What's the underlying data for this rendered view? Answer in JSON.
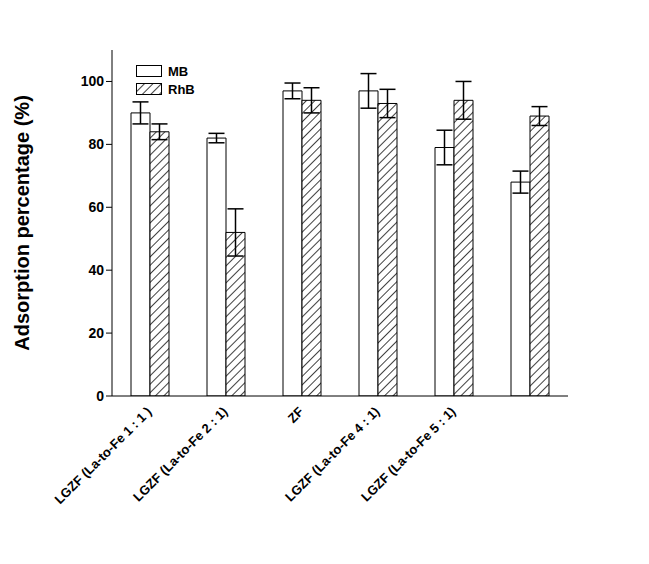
{
  "chart_data": {
    "type": "bar",
    "y_label": "Adsorption percentage (%)",
    "categories": [
      "LGZF (La-to-Fe 1 : 1 )",
      "LGZF (La-to-Fe 2 : 1)",
      "ZF",
      "LGZF (La-to-Fe 4 : 1)",
      "LGZF (La-to-Fe 5 : 1)",
      null
    ],
    "series": [
      {
        "name": "MB",
        "color": "#ffffff",
        "values": [
          90,
          82,
          97,
          97,
          79,
          68
        ],
        "errors": [
          3.5,
          1.5,
          2.5,
          5.5,
          5.5,
          3.5
        ]
      },
      {
        "name": "RhB",
        "color": "#000000",
        "values": [
          84,
          52,
          94,
          93,
          94,
          89
        ],
        "errors": [
          2.5,
          7.5,
          4,
          4.5,
          6,
          3
        ]
      }
    ],
    "ylim": [
      0,
      110
    ],
    "yticks": [
      0,
      20,
      40,
      60,
      80,
      100
    ],
    "legend": "upper left"
  }
}
